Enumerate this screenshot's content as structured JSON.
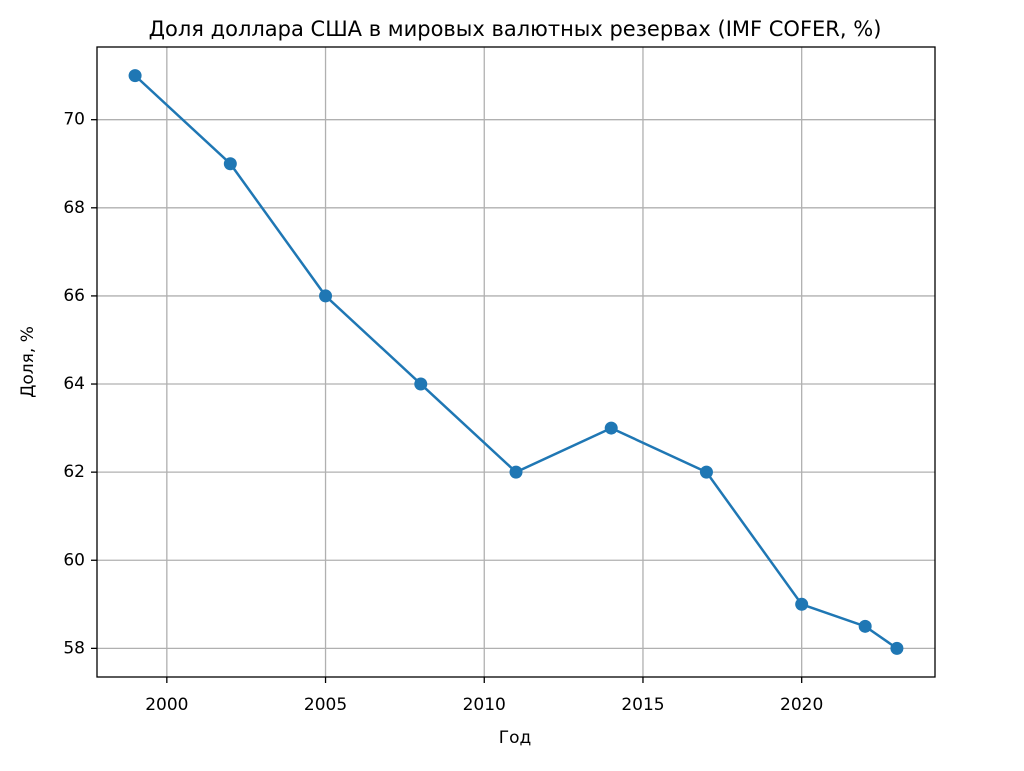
{
  "chart_data": {
    "type": "line",
    "title": "Доля доллара США в мировых валютных резервах (IMF COFER, %)",
    "x_label": "Год",
    "y_label": "Доля, %",
    "x": [
      1999,
      2002,
      2005,
      2008,
      2011,
      2014,
      2017,
      2020,
      2022,
      2023
    ],
    "series": [
      {
        "color": "#1f77b4",
        "values": [
          71,
          69,
          66,
          64,
          62,
          63,
          62,
          59,
          58.5,
          58
        ]
      }
    ],
    "xlim": [
      1997.8,
      2024.2
    ],
    "xticks": [
      2000,
      2005,
      2010,
      2015,
      2020
    ],
    "ylim": [
      57.35,
      71.65
    ],
    "yticks": [
      58,
      60,
      62,
      64,
      66,
      68,
      70
    ],
    "grid": true,
    "markers": true
  }
}
